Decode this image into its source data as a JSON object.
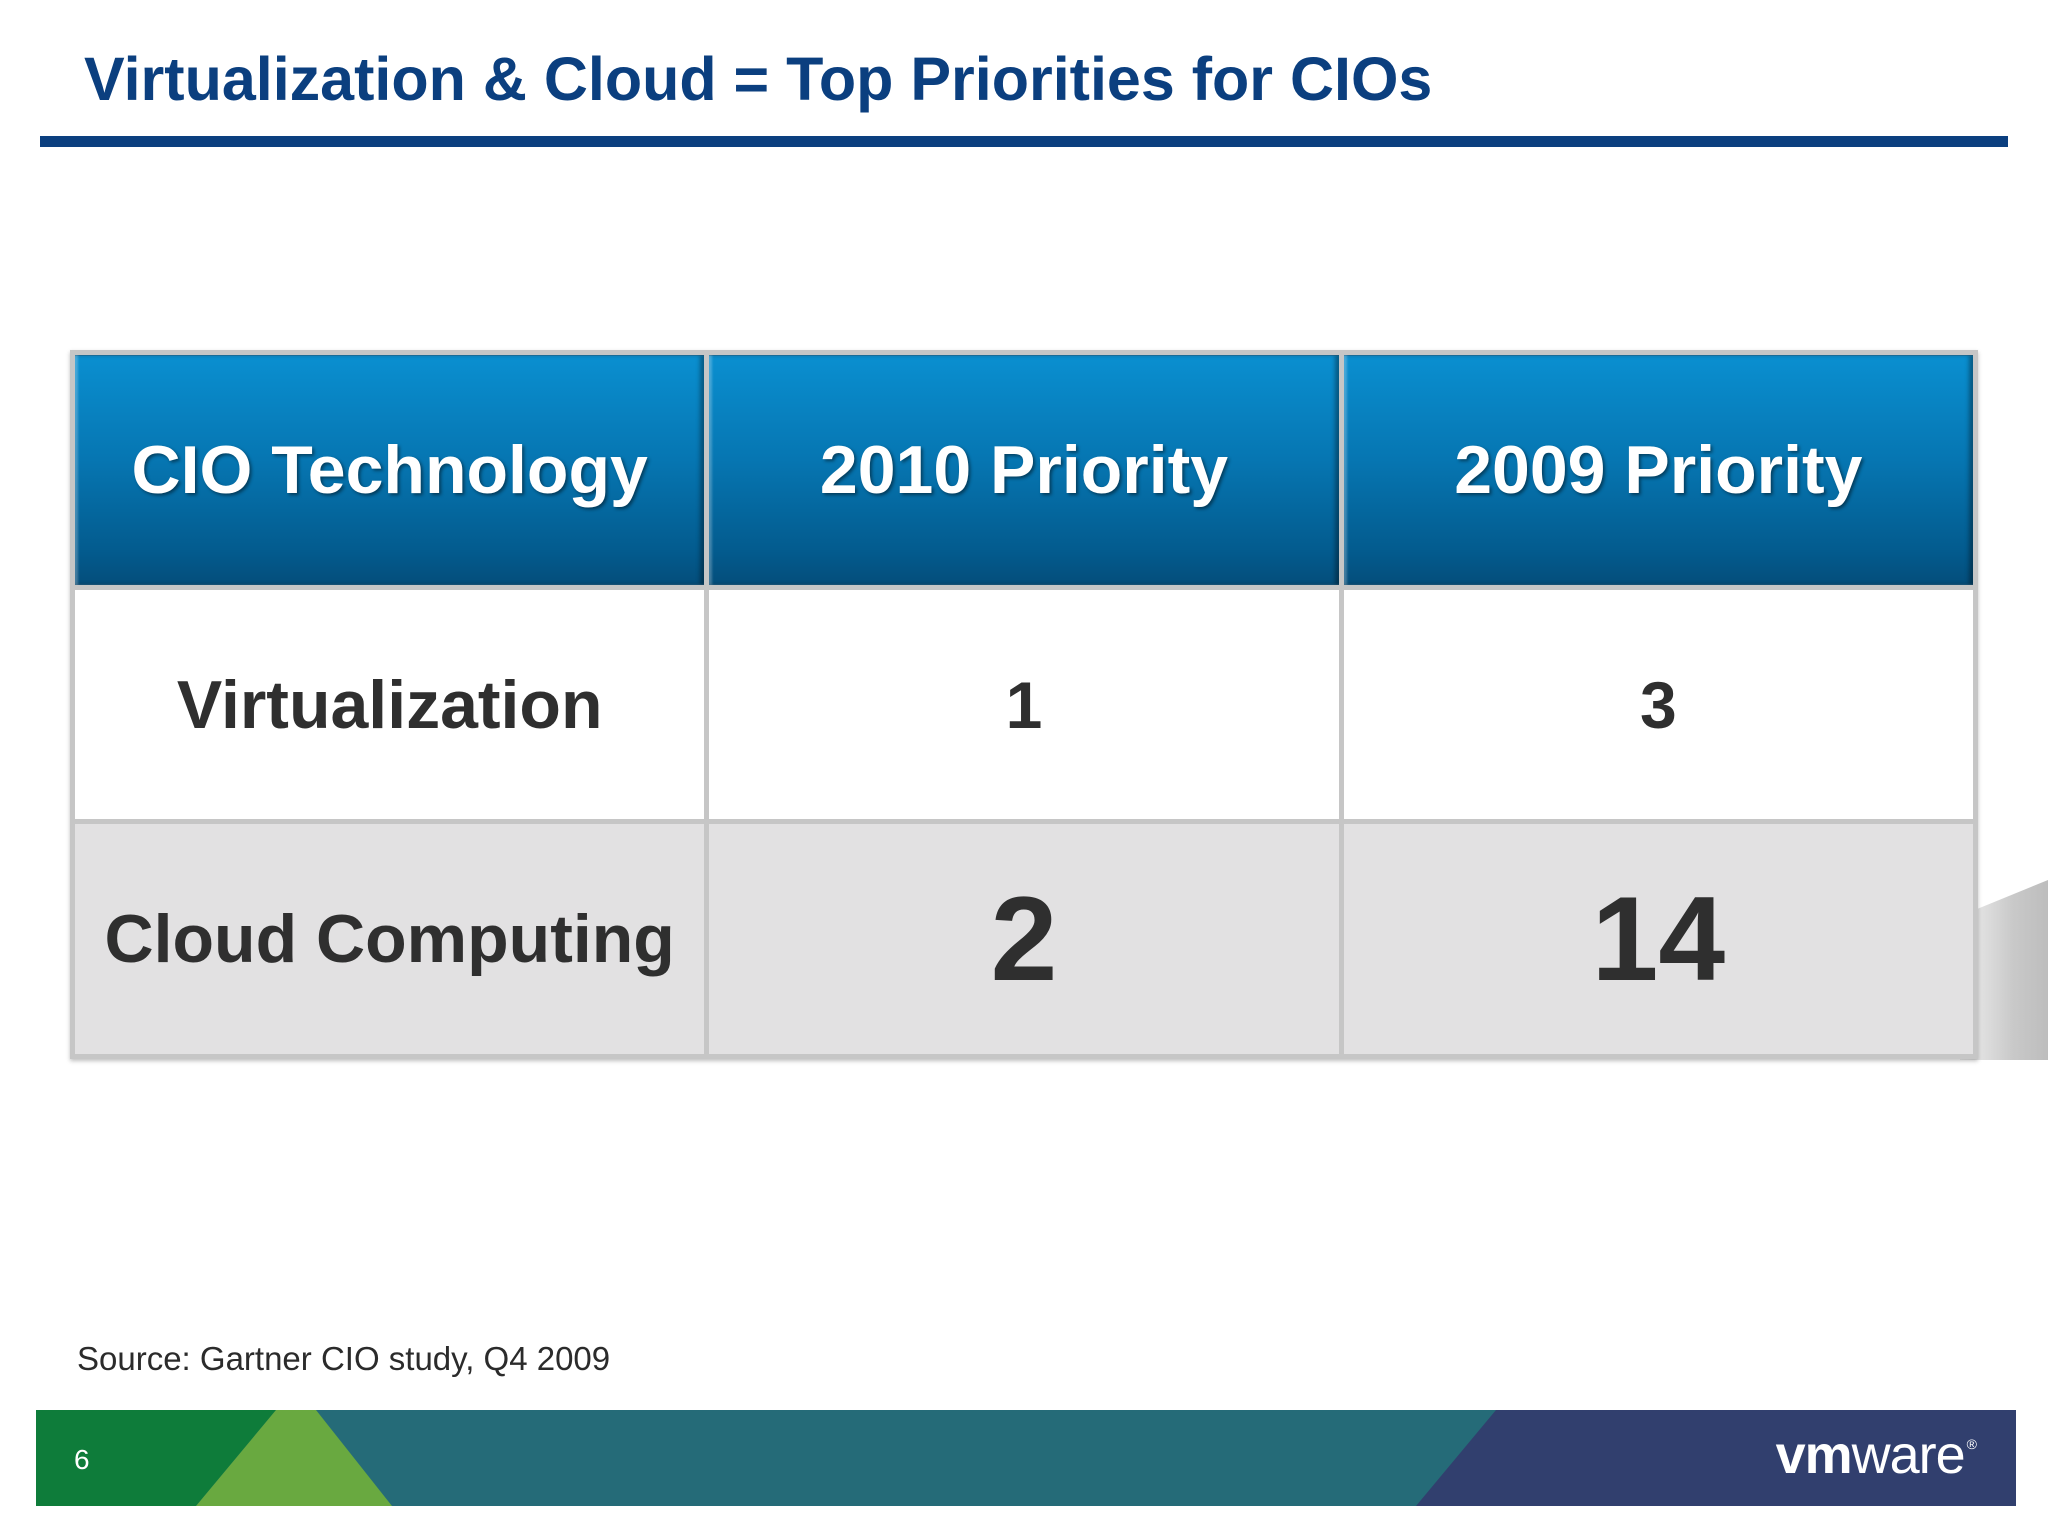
{
  "slide": {
    "title": "Virtualization & Cloud = Top Priorities for CIOs",
    "source": "Source:  Gartner CIO study, Q4 2009",
    "page_number": "6"
  },
  "table": {
    "headers": [
      "CIO Technology",
      "2010 Priority",
      "2009 Priority"
    ],
    "rows": [
      {
        "technology": "Virtualization",
        "priority_2010": "1",
        "priority_2009": "3"
      },
      {
        "technology": "Cloud Computing",
        "priority_2010": "2",
        "priority_2009": "14"
      }
    ]
  },
  "footer": {
    "logo_bold": "vm",
    "logo_light": "ware",
    "logo_mark": "®",
    "colors": {
      "green_dark": "#0e7c3a",
      "green_light": "#69a940",
      "teal": "#256b78",
      "navy": "#313f6e"
    }
  },
  "colors": {
    "title": "#0b3f7f",
    "header_blue": "#0676b2",
    "row_grey": "#e2e1e2"
  }
}
